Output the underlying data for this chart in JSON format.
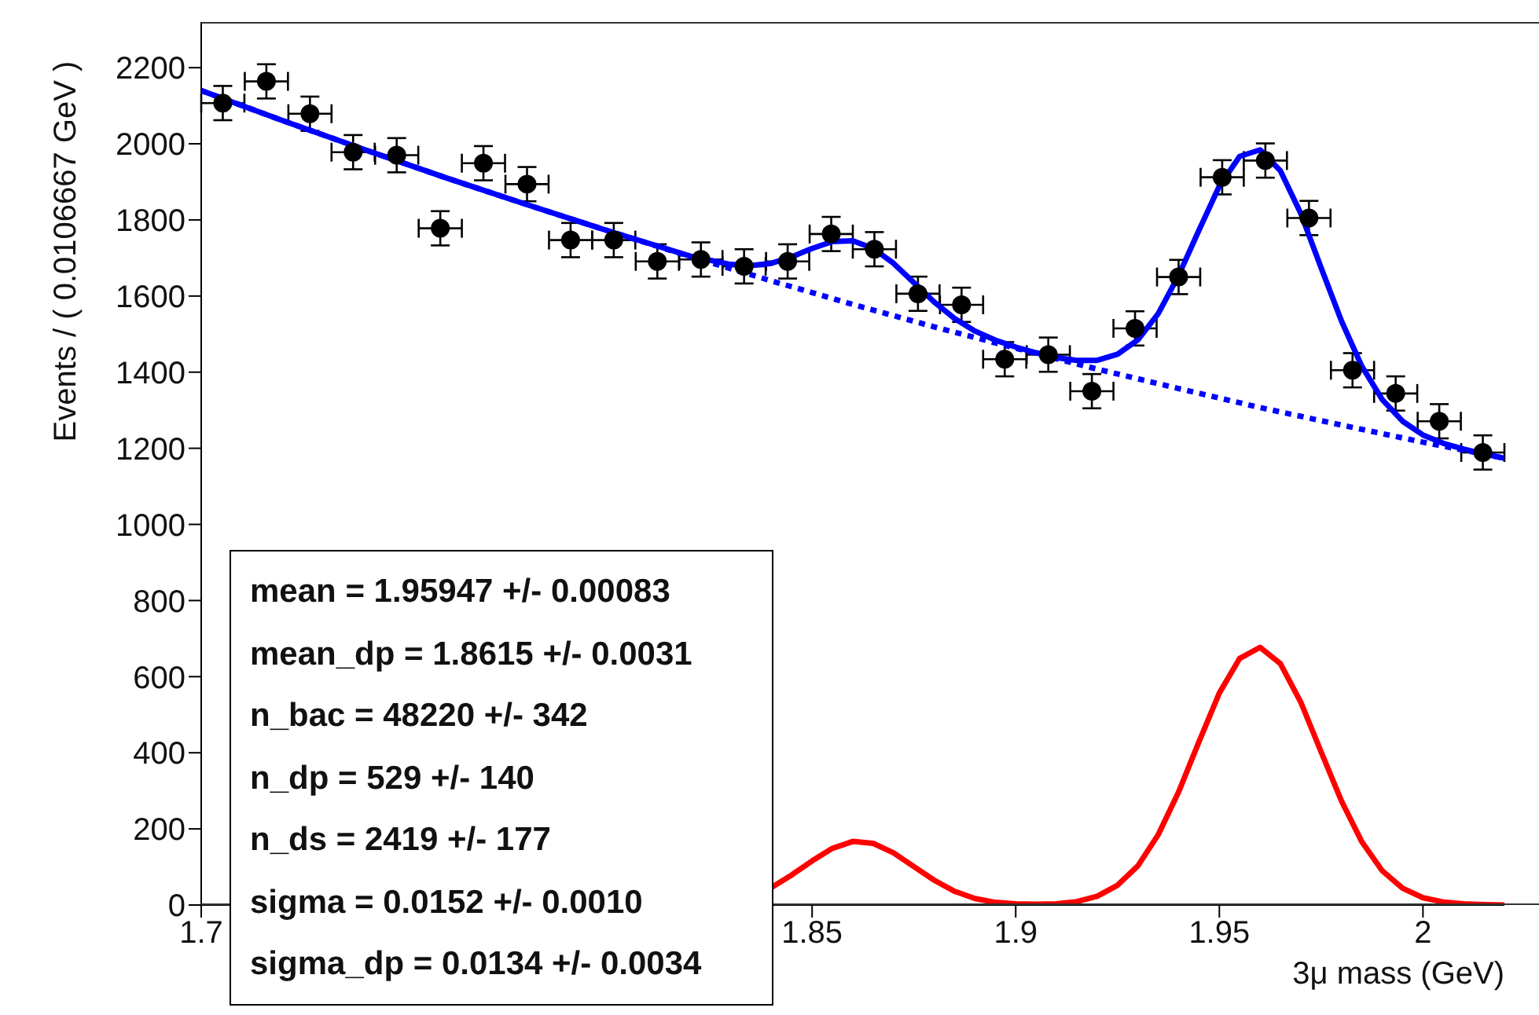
{
  "chart_data": {
    "type": "scatter",
    "xlabel": "3μ mass (GeV)",
    "ylabel": "Events / ( 0.0106667 GeV )",
    "xlim": [
      1.7,
      2.02
    ],
    "ylim": [
      0,
      2320
    ],
    "xticks": [
      1.7,
      1.85,
      1.9,
      1.95,
      2
    ],
    "yticks": [
      0,
      200,
      400,
      600,
      800,
      1000,
      1200,
      1400,
      1600,
      1800,
      2000,
      2200
    ],
    "annotations": [
      "mean =  1.95947 +/- 0.00083",
      "mean_dp =  1.8615 +/- 0.0031",
      "n_bac =  48220 +/- 342",
      "n_dp =  529 +/- 140",
      "n_ds =  2419 +/- 177",
      "sigma =  0.0152 +/- 0.0010",
      "sigma_dp =  0.0134 +/- 0.0034"
    ],
    "series": [
      {
        "color": "#000000",
        "marker": "circle",
        "x": [
          1.7053,
          1.716,
          1.7267,
          1.7373,
          1.748,
          1.7587,
          1.7693,
          1.78,
          1.7907,
          1.8013,
          1.812,
          1.8227,
          1.8333,
          1.844,
          1.8547,
          1.8653,
          1.876,
          1.8867,
          1.8973,
          1.908,
          1.9187,
          1.9293,
          1.94,
          1.9507,
          1.9613,
          1.972,
          1.9827,
          1.9933,
          2.004,
          2.0147
        ],
        "values": [
          2107,
          2164,
          2079,
          1978,
          1970,
          1778,
          1949,
          1894,
          1747,
          1747,
          1691,
          1696,
          1678,
          1691,
          1763,
          1723,
          1606,
          1577,
          1434,
          1446,
          1350,
          1515,
          1650,
          1912,
          1956,
          1805,
          1405,
          1344,
          1271,
          1189
        ],
        "errors": [
          45,
          45,
          45,
          45,
          45,
          45,
          45,
          45,
          45,
          45,
          45,
          45,
          45,
          45,
          45,
          45,
          45,
          45,
          45,
          45,
          45,
          45,
          45,
          45,
          45,
          45,
          45,
          45,
          45,
          45
        ],
        "xerrors": [
          0.0053,
          0.0053,
          0.0053,
          0.0053,
          0.0053,
          0.0053,
          0.0053,
          0.0053,
          0.0053,
          0.0053,
          0.0053,
          0.0053,
          0.0053,
          0.0053,
          0.0053,
          0.0053,
          0.0053,
          0.0053,
          0.0053,
          0.0053,
          0.0053,
          0.0053,
          0.0053,
          0.0053,
          0.0053,
          0.0053,
          0.0053,
          0.0053,
          0.0053,
          0.0053
        ]
      },
      {
        "type": "line",
        "color": "#0000ff",
        "line_style": "solid",
        "x": [
          1.7,
          1.72,
          1.74,
          1.76,
          1.78,
          1.8,
          1.82,
          1.83,
          1.835,
          1.84,
          1.845,
          1.85,
          1.855,
          1.86,
          1.865,
          1.87,
          1.875,
          1.88,
          1.885,
          1.89,
          1.895,
          1.9,
          1.905,
          1.91,
          1.915,
          1.92,
          1.925,
          1.93,
          1.935,
          1.94,
          1.945,
          1.95,
          1.955,
          1.96,
          1.965,
          1.97,
          1.975,
          1.98,
          1.985,
          1.99,
          1.995,
          2.0,
          2.005,
          2.01,
          2.015,
          2.02
        ],
        "values": [
          2140,
          2061,
          1985,
          1911,
          1840,
          1771,
          1705,
          1683,
          1680,
          1686,
          1703,
          1725,
          1743,
          1745,
          1725,
          1686,
          1635,
          1584,
          1541,
          1508,
          1484,
          1466,
          1451,
          1438,
          1431,
          1431,
          1447,
          1485,
          1554,
          1654,
          1773,
          1889,
          1967,
          1984,
          1929,
          1817,
          1674,
          1534,
          1415,
          1328,
          1271,
          1235,
          1213,
          1198,
          1185,
          1174
        ]
      },
      {
        "type": "line",
        "color": "#0000ff",
        "line_style": "dotted",
        "x": [
          1.7,
          1.72,
          1.74,
          1.76,
          1.78,
          1.8,
          1.82,
          1.84,
          1.86,
          1.88,
          1.9,
          1.92,
          1.94,
          1.96,
          1.98,
          2.0,
          2.02
        ],
        "values": [
          2140,
          2061,
          1985,
          1911,
          1840,
          1771,
          1704,
          1640,
          1578,
          1519,
          1463,
          1408,
          1357,
          1307,
          1261,
          1216,
          1174
        ]
      },
      {
        "type": "line",
        "color": "#ff0000",
        "line_style": "solid",
        "x": [
          1.84,
          1.845,
          1.85,
          1.855,
          1.86,
          1.865,
          1.87,
          1.875,
          1.88,
          1.885,
          1.89,
          1.895,
          1.9,
          1.905,
          1.91,
          1.915,
          1.92,
          1.925,
          1.93,
          1.935,
          1.94,
          1.945,
          1.95,
          1.955,
          1.96,
          1.965,
          1.97,
          1.975,
          1.98,
          1.985,
          1.99,
          1.995,
          2.0,
          2.005,
          2.01,
          2.015,
          2.02
        ],
        "values": [
          46,
          79,
          116,
          149,
          167,
          162,
          137,
          101,
          65,
          36,
          17,
          7,
          3,
          2,
          3,
          9,
          23,
          52,
          103,
          185,
          297,
          429,
          557,
          648,
          677,
          634,
          533,
          402,
          273,
          166,
          90,
          44,
          19,
          8,
          3,
          1,
          0
        ]
      }
    ]
  }
}
